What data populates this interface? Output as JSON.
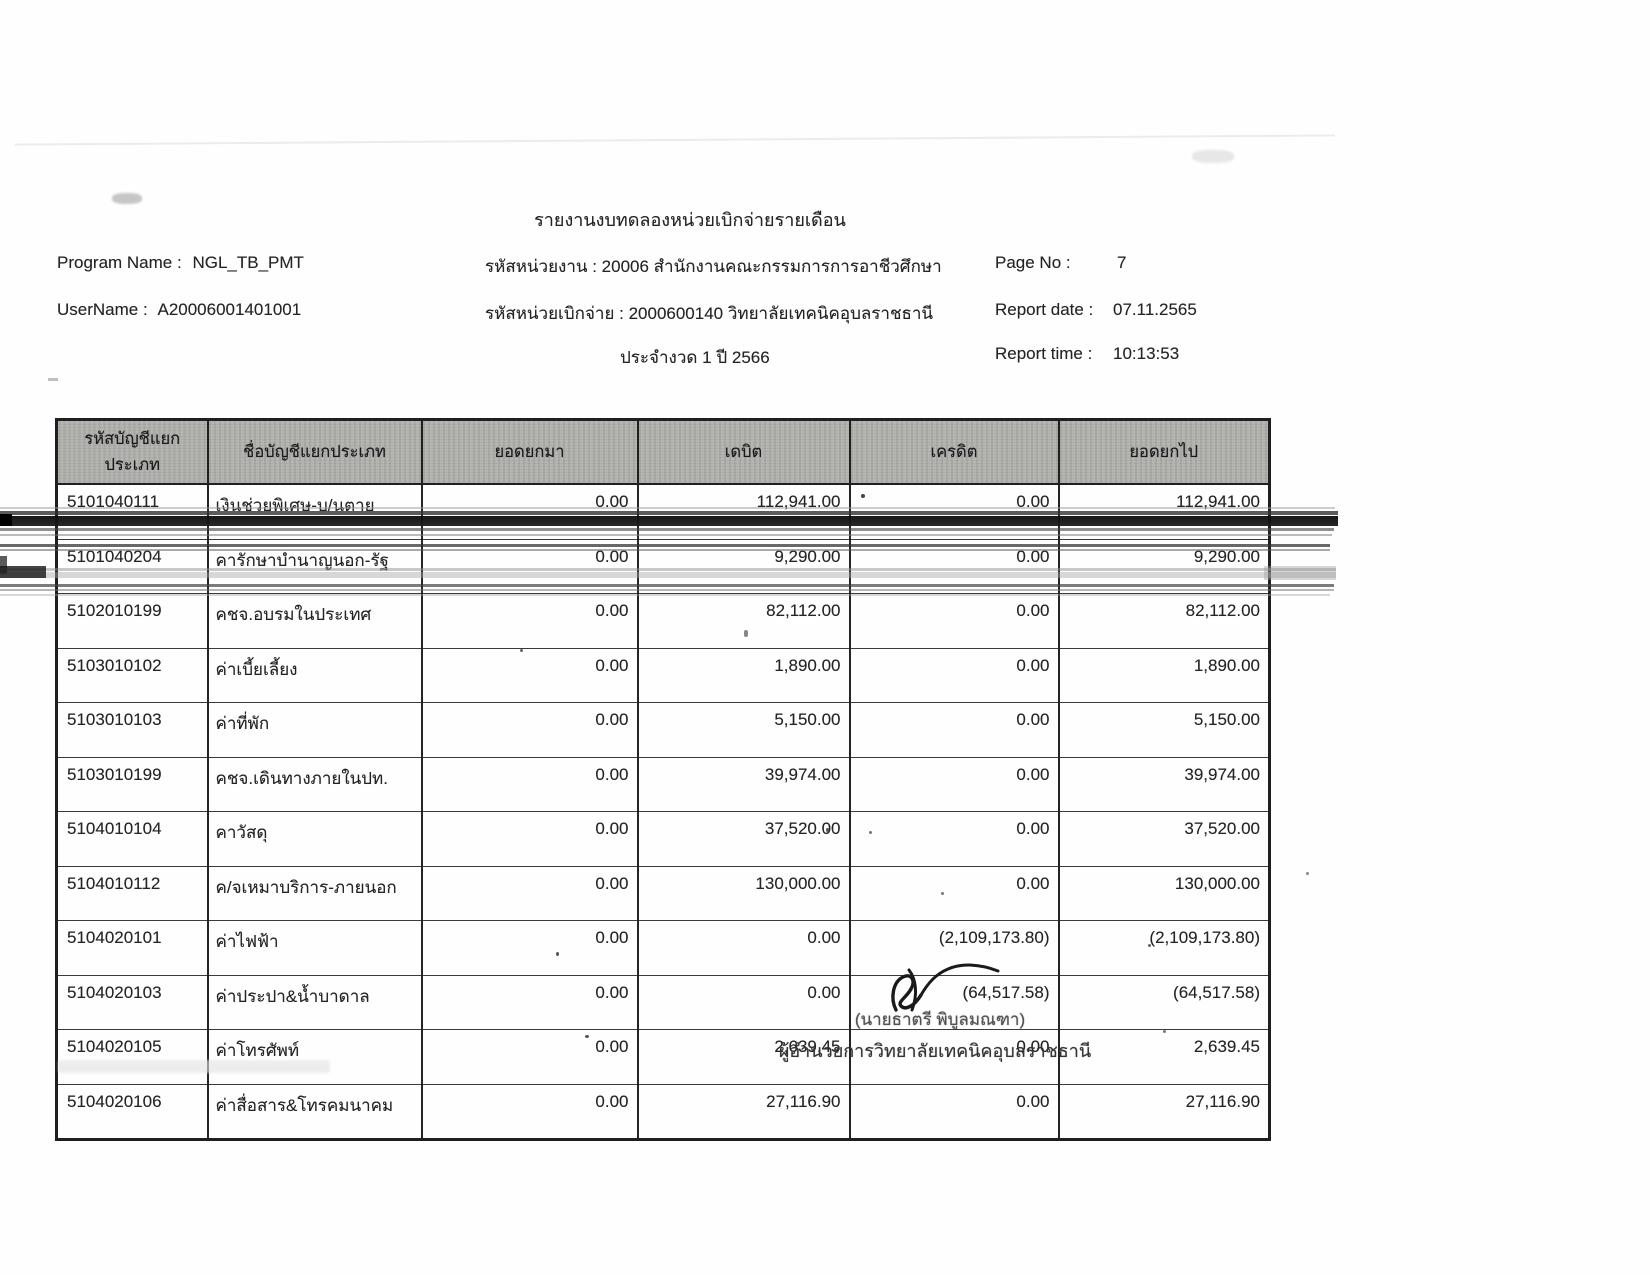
{
  "report": {
    "title": "รายงานงบทดลองหน่วยเบิกจ่ายรายเดือน",
    "program_name_label": "Program Name :",
    "program_name": "NGL_TB_PMT",
    "username_label": "UserName :",
    "username": "A20006001401001",
    "agency_line": "รหัสหน่วยงาน : 20006 สำนักงานคณะกรรมการการอาชีวศึกษา",
    "disburse_unit_line": "รหัสหน่วยเบิกจ่าย : 2000600140 วิทยาลัยเทคนิคอุบลราชธานี",
    "period_line": "ประจำงวด 1 ปี 2566",
    "page_no_label": "Page No :",
    "page_no": "7",
    "report_date_label": "Report date :",
    "report_date": "07.11.2565",
    "report_time_label": "Report time :",
    "report_time": "10:13:53"
  },
  "table": {
    "headers": [
      "รหัสบัญชีแยกประเภท",
      "ชื่อบัญชีแยกประเภท",
      "ยอดยกมา",
      "เดบิต",
      "เครดิต",
      "ยอดยกไป"
    ],
    "rows": [
      [
        "5101040111",
        "เงินช่วยพิเศษ-บ/นตาย",
        "0.00",
        "112,941.00",
        "0.00",
        "112,941.00"
      ],
      [
        "5101040204",
        "คารักษาบำนาญนอก-รัฐ",
        "0.00",
        "9,290.00",
        "0.00",
        "9,290.00"
      ],
      [
        "5102010199",
        "คชจ.อบรมในประเทศ",
        "0.00",
        "82,112.00",
        "0.00",
        "82,112.00"
      ],
      [
        "5103010102",
        "ค่าเบี้ยเลี้ยง",
        "0.00",
        "1,890.00",
        "0.00",
        "1,890.00"
      ],
      [
        "5103010103",
        "ค่าที่พัก",
        "0.00",
        "5,150.00",
        "0.00",
        "5,150.00"
      ],
      [
        "5103010199",
        "คชจ.เดินทางภายในปท.",
        "0.00",
        "39,974.00",
        "0.00",
        "39,974.00"
      ],
      [
        "5104010104",
        "คาวัสดุ",
        "0.00",
        "37,520.00",
        "0.00",
        "37,520.00"
      ],
      [
        "5104010112",
        "ค/จเหมาบริการ-ภายนอก",
        "0.00",
        "130,000.00",
        "0.00",
        "130,000.00"
      ],
      [
        "5104020101",
        "ค่าไฟฟ้า",
        "0.00",
        "0.00",
        "(2,109,173.80)",
        "(2,109,173.80)"
      ],
      [
        "5104020103",
        "ค่าประปา&น้ำบาดาล",
        "0.00",
        "0.00",
        "(64,517.58)",
        "(64,517.58)"
      ],
      [
        "5104020105",
        "ค่าโทรศัพท์",
        "0.00",
        "2,639.45",
        "0.00",
        "2,639.45"
      ],
      [
        "5104020106",
        "ค่าสื่อสาร&โทรคมนาคม",
        "0.00",
        "27,116.90",
        "0.00",
        "27,116.90"
      ]
    ]
  },
  "footer": {
    "signer_name": "(นายธาตรี พิบูลมณฑา)",
    "signer_title": "ผู้อำนวยการวิทยาลัยเทคนิคอุบลราชธานี"
  },
  "colors": {
    "header_bg": "#b4b4b1",
    "line": "#1f1f1f",
    "artifact_black": "#0b0b0b"
  }
}
